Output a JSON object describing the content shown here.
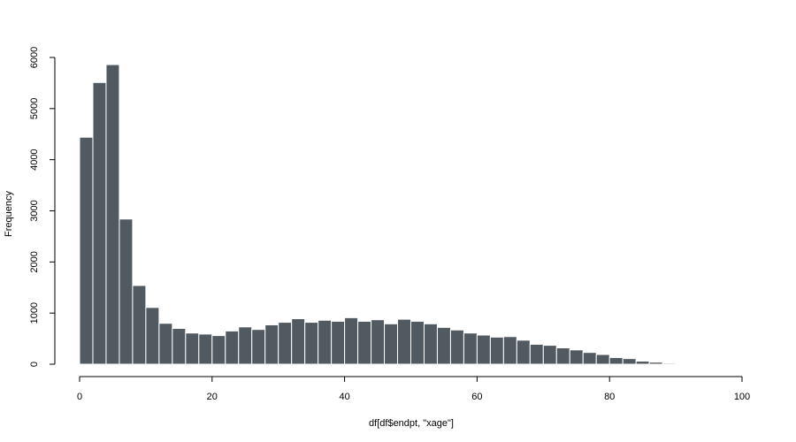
{
  "chart_data": {
    "type": "bar",
    "title": "",
    "xlabel": "df[df$endpt, \"xage\"]",
    "ylabel": "Frequency",
    "xlim": [
      0,
      100
    ],
    "ylim": [
      0,
      6000
    ],
    "x_ticks": [
      0,
      20,
      40,
      60,
      80,
      100
    ],
    "y_ticks": [
      0,
      1000,
      2000,
      3000,
      4000,
      5000,
      6000
    ],
    "bin_width": 2,
    "bin_starts": [
      0,
      2,
      4,
      6,
      8,
      10,
      12,
      14,
      16,
      18,
      20,
      22,
      24,
      26,
      28,
      30,
      32,
      34,
      36,
      38,
      40,
      42,
      44,
      46,
      48,
      50,
      52,
      54,
      56,
      58,
      60,
      62,
      64,
      66,
      68,
      70,
      72,
      74,
      76,
      78,
      80,
      82,
      84,
      86,
      88
    ],
    "values": [
      4440,
      5510,
      5860,
      2840,
      1540,
      1110,
      800,
      700,
      610,
      590,
      560,
      650,
      730,
      680,
      770,
      820,
      890,
      820,
      860,
      840,
      910,
      840,
      870,
      790,
      880,
      840,
      790,
      720,
      670,
      610,
      570,
      530,
      540,
      470,
      390,
      370,
      320,
      280,
      230,
      190,
      130,
      110,
      60,
      40,
      20
    ],
    "grid": false,
    "colors": {
      "bar_fill": "#525a61",
      "bar_stroke": "#ffffff",
      "axis": "#000000"
    }
  }
}
